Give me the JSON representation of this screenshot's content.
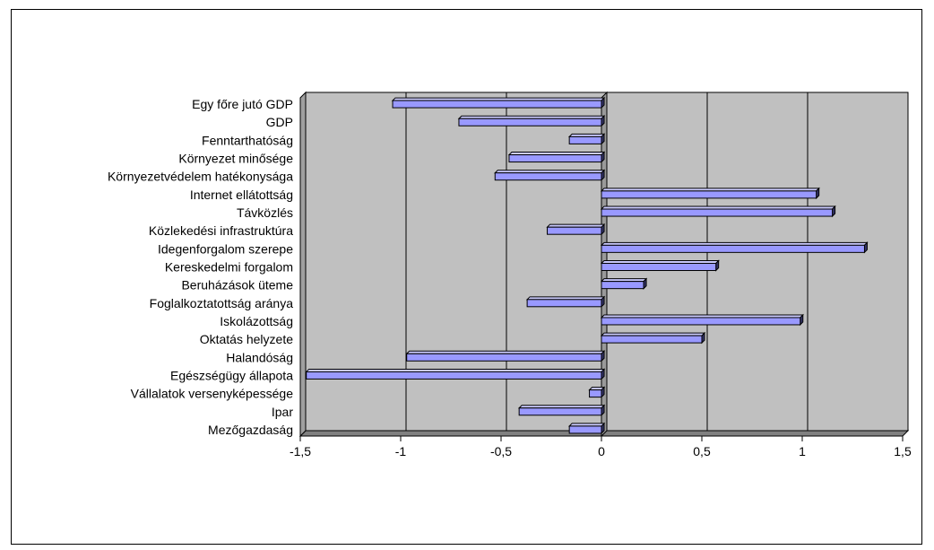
{
  "chart_data": {
    "type": "bar",
    "orientation": "horizontal",
    "categories": [
      "Egy főre jutó GDP",
      "GDP",
      "Fenntarthatóság",
      "Környezet minősége",
      "Környezetvédelem hatékonysága",
      "Internet ellátottság",
      "Távközlés",
      "Közlekedési infrastruktúra",
      "Idegenforgalom szerepe",
      "Kereskedelmi forgalom",
      "Beruházások üteme",
      "Foglalkoztatottság aránya",
      "Iskolázottság",
      "Oktatás helyzete",
      "Halandóság",
      "Egészségügy állapota",
      "Vállalatok versenyképessége",
      "Ipar",
      "Mezőgazdaság"
    ],
    "values": [
      -1.04,
      -0.71,
      -0.16,
      -0.46,
      -0.53,
      1.07,
      1.15,
      -0.27,
      1.31,
      0.57,
      0.21,
      -0.37,
      0.99,
      0.5,
      -0.97,
      -1.47,
      -0.06,
      -0.41,
      -0.16
    ],
    "xlim": [
      -1.5,
      1.5
    ],
    "xticks": [
      "-1,5",
      "-1",
      "-0,5",
      "0",
      "0,5",
      "1",
      "1,5"
    ],
    "xtick_values": [
      -1.5,
      -1,
      -0.5,
      0,
      0.5,
      1,
      1.5
    ],
    "gridlines": true,
    "legend": "none",
    "colors": {
      "plot_background": "#c0c0c0",
      "bar_face": "#9999ff",
      "bar_top": "#ccccff",
      "bar_side": "#333366",
      "grid": "#000000"
    }
  }
}
